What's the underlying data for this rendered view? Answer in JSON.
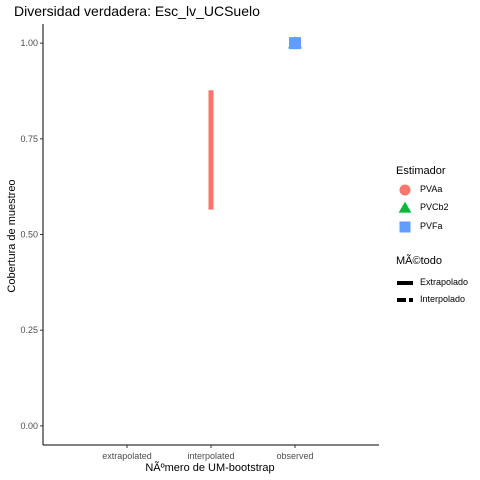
{
  "chart_data": {
    "type": "scatter",
    "title": "Diversidad verdadera: Esc_lv_UCSuelo",
    "xlabel": "NÃºmero de UM-bootstrap",
    "ylabel": "Cobertura de muestreo",
    "categories": [
      "extrapolated",
      "interpolated",
      "observed"
    ],
    "ylim": [
      -0.05,
      1.05
    ],
    "yticks": [
      "0.00",
      "0.25",
      "0.50",
      "0.75",
      "1.00"
    ],
    "grid": false,
    "legend_position": "right",
    "series": [
      {
        "name": "PVAa",
        "color": "#F8766D",
        "shape": "circle",
        "points": [
          {
            "x": "observed",
            "y": 1.0
          }
        ],
        "ranges": [
          {
            "x": "interpolated",
            "y_min": 0.565,
            "y_max": 0.877,
            "linetype": "Interpolado"
          }
        ]
      },
      {
        "name": "PVCb2",
        "color": "#00BA38",
        "shape": "triangle",
        "points": [
          {
            "x": "observed",
            "y": 1.0
          }
        ],
        "ranges": []
      },
      {
        "name": "PVFa",
        "color": "#619CFF",
        "shape": "square",
        "points": [
          {
            "x": "observed",
            "y": 1.0
          }
        ],
        "ranges": []
      }
    ],
    "legend": {
      "estimator_title": "Estimador",
      "estimators": [
        "PVAa",
        "PVCb2",
        "PVFa"
      ],
      "method_title": "MÃ©todo",
      "methods": [
        "Extrapolado",
        "Interpolado"
      ]
    }
  }
}
